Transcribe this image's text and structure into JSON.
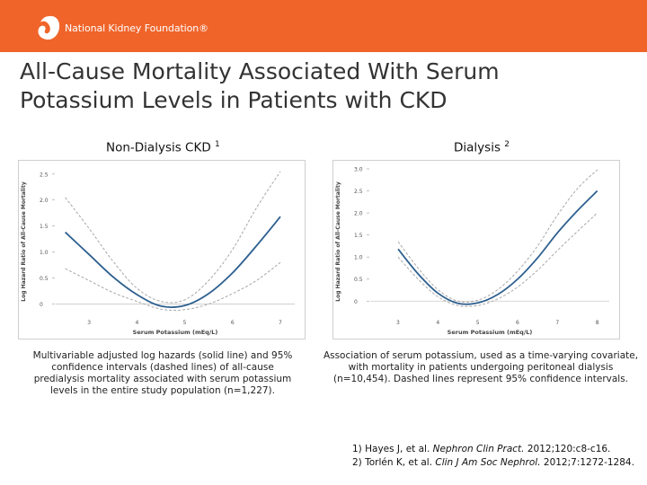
{
  "header": {
    "org_name": "National Kidney Foundation®",
    "color": "#f0642a"
  },
  "title": {
    "line1": "All-Cause Mortality Associated With Serum",
    "line2": "Potassium Levels in Patients with CKD"
  },
  "panels": [
    {
      "label": "Non-Dialysis CKD",
      "ref": "1",
      "caption": "Multivariable adjusted log hazards (solid line) and 95% confidence intervals (dashed lines) of all-cause predialysis mortality associated with serum potassium levels in the entire study population (n=1,227)."
    },
    {
      "label": "Dialysis",
      "ref": "2",
      "caption": "Association of serum potassium, used as a time-varying covariate, with mortality in patients undergoing peritoneal dialysis (n=10,454). Dashed lines represent 95% confidence intervals."
    }
  ],
  "chart_data": [
    {
      "type": "line",
      "xlabel": "Serum Potassium (mEq/L)",
      "ylabel": "Log Hazard Ratio of All-Cause Mortality",
      "xlim": [
        2.3,
        7.3
      ],
      "ylim": [
        -0.2,
        2.6
      ],
      "x_ticks": [
        "3",
        "4",
        "5",
        "6",
        "7"
      ],
      "y_ticks": [
        "0",
        "0.5",
        "1.0",
        "1.5",
        "2.0",
        "2.5"
      ],
      "series": [
        {
          "name": "estimate",
          "style": "solid",
          "x": [
            2.5,
            3.0,
            3.5,
            4.0,
            4.5,
            5.0,
            5.5,
            6.0,
            6.5,
            7.0
          ],
          "values": [
            1.38,
            0.95,
            0.52,
            0.18,
            -0.04,
            -0.03,
            0.2,
            0.6,
            1.12,
            1.68
          ]
        },
        {
          "name": "upper 95% CI",
          "style": "dashed",
          "x": [
            2.5,
            3.0,
            3.5,
            4.0,
            4.5,
            5.0,
            5.5,
            6.0,
            6.5,
            7.0
          ],
          "values": [
            2.05,
            1.45,
            0.82,
            0.3,
            0.05,
            0.08,
            0.45,
            1.05,
            1.85,
            2.55
          ]
        },
        {
          "name": "lower 95% CI",
          "style": "dashed",
          "x": [
            2.5,
            3.0,
            3.5,
            4.0,
            4.5,
            5.0,
            5.5,
            6.0,
            6.5,
            7.0
          ],
          "values": [
            0.68,
            0.45,
            0.22,
            0.05,
            -0.1,
            -0.11,
            0.0,
            0.2,
            0.45,
            0.8
          ]
        }
      ]
    },
    {
      "type": "line",
      "xlabel": "Serum Potassium (mEq/L)",
      "ylabel": "Log Hazard Ratio of All-Cause Mortality",
      "xlim": [
        2.3,
        8.3
      ],
      "ylim": [
        -0.3,
        3.0
      ],
      "x_ticks": [
        "3",
        "4",
        "5",
        "6",
        "7",
        "8"
      ],
      "y_ticks": [
        "0",
        "0.5",
        "1.0",
        "1.5",
        "2.0",
        "2.5",
        "3.0"
      ],
      "series": [
        {
          "name": "estimate",
          "style": "solid",
          "x": [
            3.0,
            3.5,
            4.0,
            4.5,
            5.0,
            5.5,
            6.0,
            6.5,
            7.0,
            7.5,
            8.0
          ],
          "values": [
            1.18,
            0.62,
            0.18,
            -0.05,
            -0.04,
            0.15,
            0.5,
            0.98,
            1.55,
            2.05,
            2.5
          ]
        },
        {
          "name": "upper 95% CI",
          "style": "dashed",
          "x": [
            3.0,
            3.5,
            4.0,
            4.5,
            5.0,
            5.5,
            6.0,
            6.5,
            7.0,
            7.5,
            8.0
          ],
          "values": [
            1.35,
            0.75,
            0.26,
            0.0,
            0.02,
            0.26,
            0.68,
            1.25,
            1.95,
            2.55,
            2.98
          ]
        },
        {
          "name": "lower 95% CI",
          "style": "dashed",
          "x": [
            3.0,
            3.5,
            4.0,
            4.5,
            5.0,
            5.5,
            6.0,
            6.5,
            7.0,
            7.5,
            8.0
          ],
          "values": [
            1.0,
            0.5,
            0.1,
            -0.1,
            -0.1,
            0.05,
            0.32,
            0.7,
            1.15,
            1.58,
            2.0
          ]
        }
      ]
    }
  ],
  "references": [
    {
      "num": "1)",
      "authors": "Hayes J, et al.",
      "journal": "Nephron Clin Pract.",
      "details": "2012;120:c8-c16."
    },
    {
      "num": "2)",
      "authors": "Torlén K, et al.",
      "journal": "Clin J Am Soc Nephrol.",
      "details": "2012;7:1272-1284."
    }
  ]
}
